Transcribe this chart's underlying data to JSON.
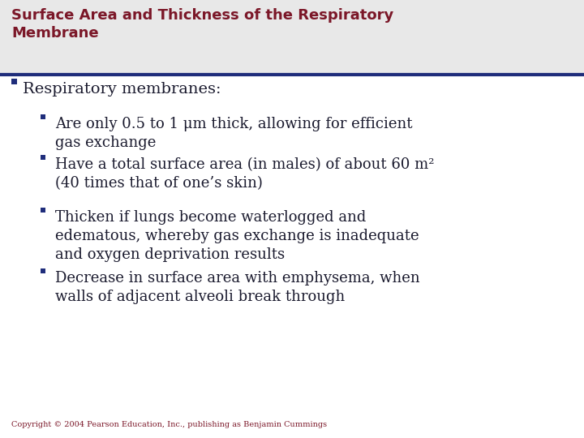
{
  "title_line1": "Surface Area and Thickness of the Respiratory",
  "title_line2": "Membrane",
  "title_color": "#7B1728",
  "title_bg_color": "#E8E8E8",
  "divider_color": "#1F2D7B",
  "bg_color": "#FFFFFF",
  "text_color": "#1a1a2e",
  "bullet_color": "#1F2D7B",
  "copyright": "Copyright © 2004 Pearson Education, Inc., publishing as Benjamin Cummings",
  "level1_text": "Respiratory membranes:",
  "title_fontsize": 13,
  "level1_fontsize": 14,
  "level2_fontsize": 13,
  "copyright_fontsize": 7,
  "items": [
    "Are only 0.5 to 1 μm thick, allowing for efficient\ngas exchange",
    "Have a total surface area (in males) of about 60 m²\n(40 times that of one’s skin)",
    "Thicken if lungs become waterlogged and\nedematous, whereby gas exchange is inadequate\nand oxygen deprivation results",
    "Decrease in surface area with emphysema, when\nwalls of adjacent alveoli break through"
  ]
}
